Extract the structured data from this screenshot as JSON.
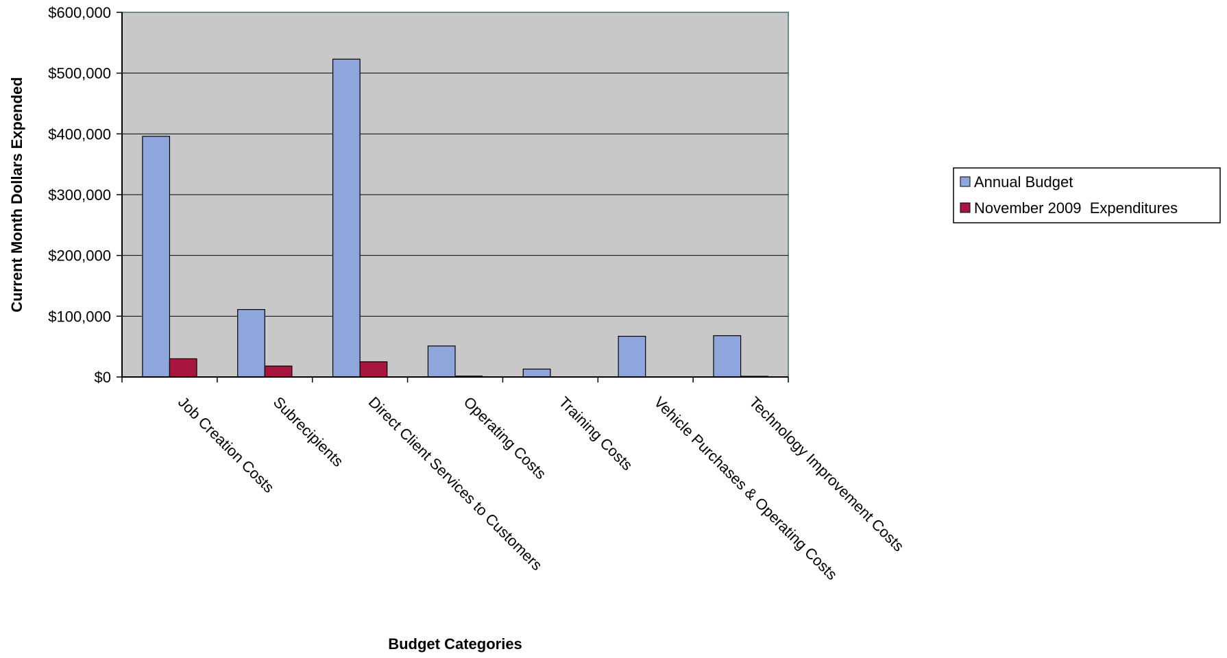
{
  "chart_data": {
    "type": "bar",
    "title": "",
    "xlabel": "Budget Categories",
    "ylabel": "Current Month Dollars Expended",
    "ylim": [
      0,
      600000
    ],
    "y_ticks": [
      {
        "value": 0,
        "label": "$0"
      },
      {
        "value": 100000,
        "label": "$100,000"
      },
      {
        "value": 200000,
        "label": "$200,000"
      },
      {
        "value": 300000,
        "label": "$300,000"
      },
      {
        "value": 400000,
        "label": "$400,000"
      },
      {
        "value": 500000,
        "label": "$500,000"
      },
      {
        "value": 600000,
        "label": "$600,000"
      }
    ],
    "categories": [
      "Job Creation Costs",
      "Subrecipients",
      "Direct Client Services to Customers",
      "Operating Costs",
      "Training Costs",
      "Vehicle Purchases & Operating Costs",
      "Technology Improvement Costs"
    ],
    "series": [
      {
        "name": "Annual Budget",
        "color": "#8fa6dc",
        "values": [
          396000,
          111000,
          523000,
          51000,
          13000,
          67000,
          68000
        ]
      },
      {
        "name": "November 2009  Expenditures",
        "color": "#a8153f",
        "values": [
          30000,
          18000,
          25000,
          1500,
          0,
          0,
          500
        ]
      }
    ],
    "grid": true,
    "plot_background": "#c8c8c8",
    "legend_position": "right"
  }
}
